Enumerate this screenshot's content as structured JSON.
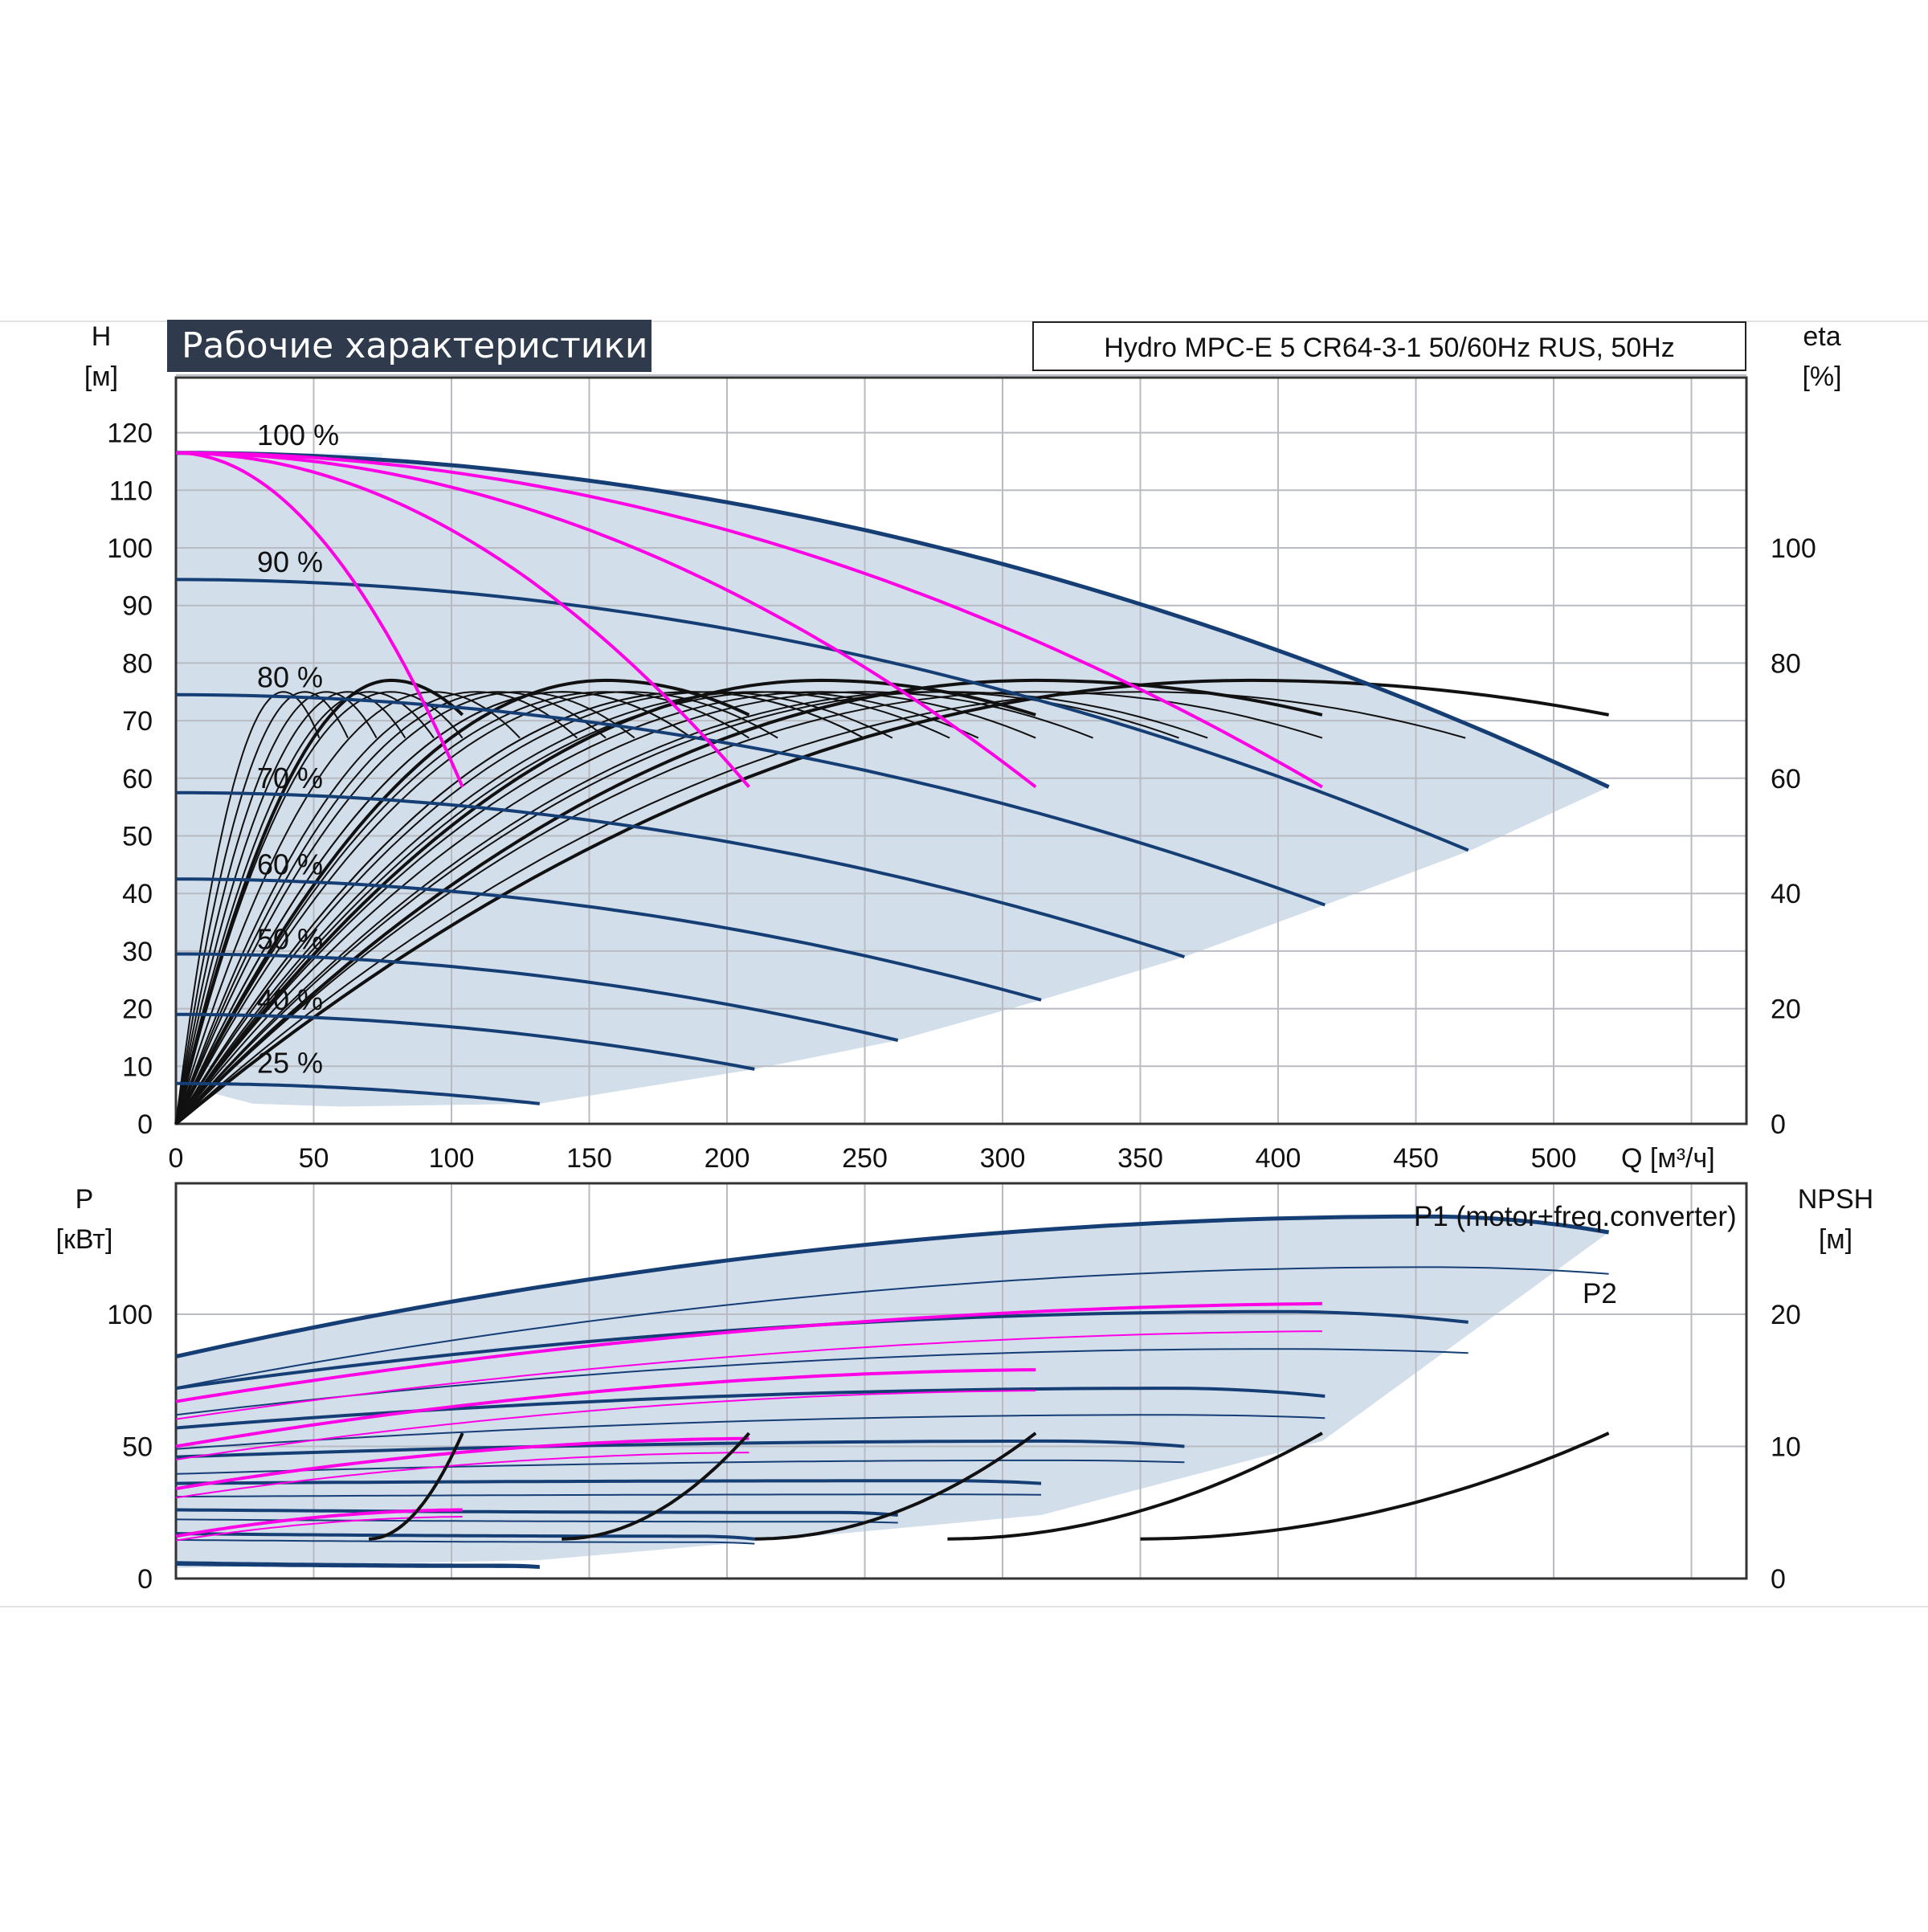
{
  "header": {
    "title": "Рабочие характеристики",
    "model": "Hydro MPC-E 5 CR64-3-1 50/60Hz RUS, 50Hz"
  },
  "colors": {
    "band": "#d3deeb",
    "band_light": "#eaf2fb",
    "navy": "#153e75",
    "magenta": "#ff00e6",
    "black": "#111111",
    "grid": "#b8bcc2"
  },
  "chart_data": [
    {
      "type": "line",
      "name": "head-efficiency",
      "xlabel": "Q [м³/ч]",
      "ylabel_left": [
        "H",
        "[м]"
      ],
      "ylabel_right": [
        "eta",
        "[%]"
      ],
      "xlim": [
        0,
        570
      ],
      "ylim": [
        0,
        130
      ],
      "y2lim": [
        0,
        100
      ],
      "grid": true,
      "x_ticks": [
        0,
        50,
        100,
        150,
        200,
        250,
        300,
        350,
        400,
        450,
        500
      ],
      "y_ticks": [
        0,
        10,
        20,
        30,
        40,
        50,
        60,
        70,
        80,
        90,
        100,
        110,
        120
      ],
      "y2_ticks": [
        0,
        20,
        40,
        60,
        80,
        100
      ],
      "speed_labels": [
        {
          "text": "100 %",
          "h": 119.5
        },
        {
          "text": "90 %",
          "h": 97.5
        },
        {
          "text": "80 %",
          "h": 77.5
        },
        {
          "text": "70 %",
          "h": 60
        },
        {
          "text": "60 %",
          "h": 45
        },
        {
          "text": "50 %",
          "h": 32
        },
        {
          "text": "40 %",
          "h": 21.5
        },
        {
          "text": "25 %",
          "h": 10.5
        }
      ],
      "head_curves_5_pumps": [
        {
          "speed": "100 %",
          "h0": 116.5,
          "qmax": 520,
          "hend": 58.5
        },
        {
          "speed": "90 %",
          "h0": 94.5,
          "qmax": 469,
          "hend": 47.5
        },
        {
          "speed": "80 %",
          "h0": 74.5,
          "qmax": 417,
          "hend": 38
        },
        {
          "speed": "70 %",
          "h0": 57.5,
          "qmax": 366,
          "hend": 29
        },
        {
          "speed": "60 %",
          "h0": 42.5,
          "qmax": 314,
          "hend": 21.5
        },
        {
          "speed": "50 %",
          "h0": 29.5,
          "qmax": 262,
          "hend": 14.5
        },
        {
          "speed": "40 %",
          "h0": 19,
          "qmax": 210,
          "hend": 9.5
        },
        {
          "speed": "25 %",
          "h0": 7,
          "qmax": 132,
          "hend": 3.5
        }
      ],
      "head_curves_100pct_by_pumps": [
        {
          "pumps": 1,
          "h0": 116.5,
          "qmax": 104,
          "hend": 58.5
        },
        {
          "pumps": 2,
          "h0": 116.5,
          "qmax": 208,
          "hend": 58.5
        },
        {
          "pumps": 3,
          "h0": 116.5,
          "qmax": 312,
          "hend": 58.5
        },
        {
          "pumps": 4,
          "h0": 116.5,
          "qmax": 416,
          "hend": 58.5
        }
      ],
      "efficiency_curves_100pct": [
        {
          "pumps": 1,
          "peak_q": 78,
          "peak_eta": 77,
          "qmax": 104,
          "eta_end": 71
        },
        {
          "pumps": 2,
          "peak_q": 156,
          "peak_eta": 77,
          "qmax": 208,
          "eta_end": 71
        },
        {
          "pumps": 3,
          "peak_q": 234,
          "peak_eta": 77,
          "qmax": 312,
          "eta_end": 71
        },
        {
          "pumps": 4,
          "peak_q": 312,
          "peak_eta": 77,
          "qmax": 416,
          "eta_end": 71
        },
        {
          "pumps": 5,
          "peak_q": 390,
          "peak_eta": 77,
          "qmax": 520,
          "eta_end": 71
        }
      ]
    },
    {
      "type": "line",
      "name": "power-npsh",
      "xlim": [
        0,
        570
      ],
      "ylabel_left": [
        "P",
        "[кВт]"
      ],
      "ylabel_right": [
        "NPSH",
        "[м]"
      ],
      "ylim": [
        0,
        150
      ],
      "y2lim": [
        0,
        30
      ],
      "y_ticks": [
        0,
        50,
        100
      ],
      "y2_ticks": [
        0,
        10,
        20
      ],
      "grid": true,
      "series_labels": [
        "P1 (motor+freq.converter)",
        "P2"
      ],
      "p1_curves_5_pumps": [
        {
          "speed": "100 %",
          "p0": 84,
          "peak_q": 455,
          "peak": 137,
          "qmax": 520,
          "pend": 131
        },
        {
          "speed": "90 %",
          "p0": 72,
          "peak_q": 400,
          "peak": 101,
          "qmax": 469,
          "pend": 97
        },
        {
          "speed": "80 %",
          "p0": 57,
          "peak_q": 360,
          "peak": 72,
          "qmax": 417,
          "pend": 69
        },
        {
          "speed": "70 %",
          "p0": 46,
          "peak_q": 320,
          "peak": 52,
          "qmax": 366,
          "pend": 50
        },
        {
          "speed": "60 %",
          "p0": 36,
          "peak_q": 280,
          "peak": 37,
          "qmax": 314,
          "pend": 36
        },
        {
          "speed": "50 %",
          "p0": 26,
          "peak_q": 240,
          "peak": 25,
          "qmax": 262,
          "pend": 24
        },
        {
          "speed": "40 %",
          "p0": 17,
          "peak_q": 190,
          "peak": 16,
          "qmax": 210,
          "pend": 15
        },
        {
          "speed": "25 %",
          "p0": 6,
          "peak_q": 120,
          "peak": 5,
          "qmax": 132,
          "pend": 4.5
        }
      ],
      "p1_curves_100pct_by_pumps": [
        {
          "pumps": 1,
          "p0": 16,
          "qmax": 104,
          "pend": 26
        },
        {
          "pumps": 2,
          "p0": 34,
          "qmax": 208,
          "pend": 53
        },
        {
          "pumps": 3,
          "p0": 50,
          "qmax": 312,
          "pend": 79
        },
        {
          "pumps": 4,
          "p0": 67,
          "qmax": 416,
          "pend": 104
        }
      ],
      "npsh_curves_m": [
        {
          "pumps": 1,
          "q_start": 70,
          "n_start": 3,
          "qmax": 104,
          "nend": 11
        },
        {
          "pumps": 2,
          "q_start": 140,
          "n_start": 3,
          "qmax": 208,
          "nend": 11
        },
        {
          "pumps": 3,
          "q_start": 210,
          "n_start": 3,
          "qmax": 312,
          "nend": 11
        },
        {
          "pumps": 4,
          "q_start": 280,
          "n_start": 3,
          "qmax": 416,
          "nend": 11
        },
        {
          "pumps": 5,
          "q_start": 350,
          "n_start": 3,
          "qmax": 520,
          "nend": 11
        }
      ]
    }
  ]
}
